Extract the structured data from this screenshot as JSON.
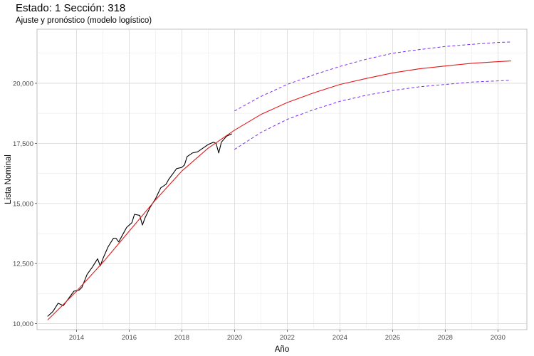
{
  "title": "Estado: 1 Sección: 318",
  "subtitle": "Ajuste y pronóstico (modelo logístico)",
  "chart_data": {
    "type": "line",
    "title": "Estado: 1 Sección: 318",
    "subtitle": "Ajuste y pronóstico (modelo logístico)",
    "xlabel": "Año",
    "ylabel": "Lista Nominal",
    "xlim": [
      2012.5,
      2031.1
    ],
    "ylim": [
      9750,
      22250
    ],
    "x_ticks": [
      2014,
      2016,
      2018,
      2020,
      2022,
      2024,
      2026,
      2028,
      2030
    ],
    "x_tick_labels": [
      "2014",
      "2016",
      "2018",
      "2020",
      "2022",
      "2024",
      "2026",
      "2028",
      "2030"
    ],
    "y_ticks": [
      10000,
      12500,
      15000,
      17500,
      20000
    ],
    "y_tick_labels": [
      "10,000",
      "12,500",
      "15,000",
      "17,500",
      "20,000"
    ],
    "grid": true,
    "series": [
      {
        "name": "",
        "style": "solid",
        "color": "#000000",
        "points": [
          [
            2012.9,
            10300
          ],
          [
            2013.1,
            10500
          ],
          [
            2013.3,
            10850
          ],
          [
            2013.5,
            10750
          ],
          [
            2013.7,
            11050
          ],
          [
            2013.9,
            11350
          ],
          [
            2014.1,
            11400
          ],
          [
            2014.2,
            11500
          ],
          [
            2014.4,
            12050
          ],
          [
            2014.6,
            12350
          ],
          [
            2014.8,
            12700
          ],
          [
            2014.9,
            12400
          ],
          [
            2015.0,
            12700
          ],
          [
            2015.2,
            13200
          ],
          [
            2015.4,
            13550
          ],
          [
            2015.5,
            13550
          ],
          [
            2015.6,
            13400
          ],
          [
            2015.8,
            13800
          ],
          [
            2015.9,
            14000
          ],
          [
            2016.1,
            14200
          ],
          [
            2016.2,
            14550
          ],
          [
            2016.4,
            14500
          ],
          [
            2016.5,
            14100
          ],
          [
            2016.6,
            14400
          ],
          [
            2016.8,
            14850
          ],
          [
            2017.0,
            15200
          ],
          [
            2017.2,
            15650
          ],
          [
            2017.4,
            15800
          ],
          [
            2017.5,
            16000
          ],
          [
            2017.7,
            16300
          ],
          [
            2017.8,
            16450
          ],
          [
            2018.0,
            16500
          ],
          [
            2018.1,
            16600
          ],
          [
            2018.2,
            16950
          ],
          [
            2018.4,
            17100
          ],
          [
            2018.6,
            17150
          ],
          [
            2018.8,
            17300
          ],
          [
            2019.0,
            17450
          ],
          [
            2019.2,
            17550
          ],
          [
            2019.3,
            17500
          ],
          [
            2019.4,
            17100
          ],
          [
            2019.5,
            17550
          ],
          [
            2019.7,
            17800
          ],
          [
            2019.9,
            17900
          ]
        ]
      },
      {
        "name": "",
        "style": "solid",
        "color": "#e41a1c",
        "points": [
          [
            2012.9,
            10150
          ],
          [
            2013.5,
            10800
          ],
          [
            2014.0,
            11350
          ],
          [
            2015.0,
            12550
          ],
          [
            2016.0,
            13850
          ],
          [
            2017.0,
            15150
          ],
          [
            2018.0,
            16350
          ],
          [
            2019.0,
            17300
          ],
          [
            2020.0,
            18050
          ],
          [
            2021.0,
            18700
          ],
          [
            2022.0,
            19200
          ],
          [
            2023.0,
            19600
          ],
          [
            2024.0,
            19950
          ],
          [
            2025.0,
            20200
          ],
          [
            2026.0,
            20430
          ],
          [
            2027.0,
            20600
          ],
          [
            2028.0,
            20720
          ],
          [
            2029.0,
            20830
          ],
          [
            2030.0,
            20900
          ],
          [
            2030.5,
            20930
          ]
        ]
      },
      {
        "name": "",
        "style": "dashed",
        "color": "#7b2cf2",
        "points": [
          [
            2020.0,
            18850
          ],
          [
            2021.0,
            19450
          ],
          [
            2022.0,
            19950
          ],
          [
            2023.0,
            20350
          ],
          [
            2024.0,
            20700
          ],
          [
            2025.0,
            21000
          ],
          [
            2026.0,
            21250
          ],
          [
            2027.0,
            21400
          ],
          [
            2028.0,
            21530
          ],
          [
            2029.0,
            21620
          ],
          [
            2030.0,
            21700
          ],
          [
            2030.5,
            21720
          ]
        ]
      },
      {
        "name": "",
        "style": "dashed",
        "color": "#7b2cf2",
        "points": [
          [
            2020.0,
            17250
          ],
          [
            2021.0,
            17950
          ],
          [
            2022.0,
            18500
          ],
          [
            2023.0,
            18900
          ],
          [
            2024.0,
            19250
          ],
          [
            2025.0,
            19500
          ],
          [
            2026.0,
            19700
          ],
          [
            2027.0,
            19850
          ],
          [
            2028.0,
            19950
          ],
          [
            2029.0,
            20050
          ],
          [
            2030.0,
            20100
          ],
          [
            2030.5,
            20130
          ]
        ]
      }
    ]
  }
}
